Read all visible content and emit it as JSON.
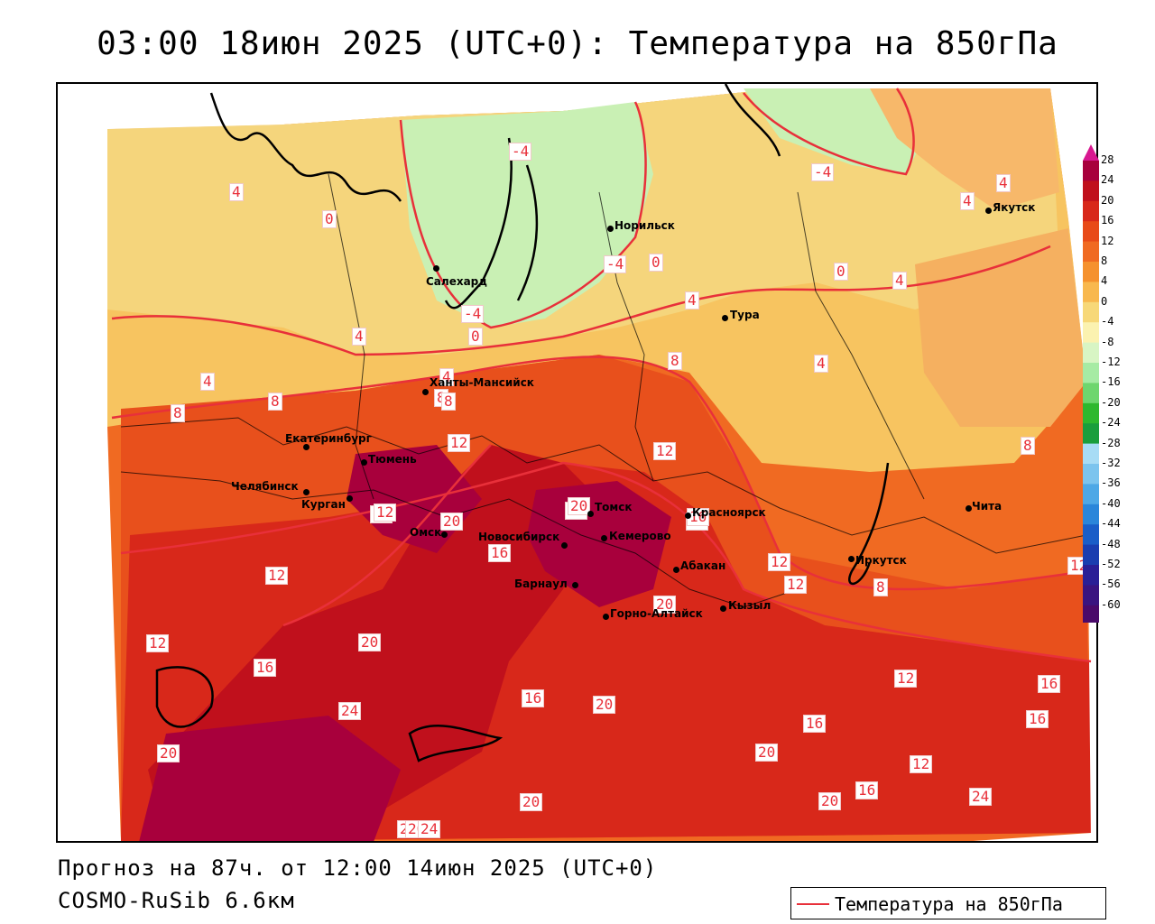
{
  "title": "03:00 18июн 2025 (UTC+0): Температура на 850гПа",
  "footer": {
    "forecast": "Прогноз на 87ч. от 12:00 14июн 2025 (UTC+0)",
    "model": "COSMO-RuSib 6.6км"
  },
  "legend": {
    "label": "Температура на 850гПа",
    "color": "#e8303a"
  },
  "colorbar": {
    "labels": [
      "28",
      "24",
      "20",
      "16",
      "12",
      "8",
      "4",
      "0",
      "-4",
      "-8",
      "-12",
      "-16",
      "-20",
      "-24",
      "-28",
      "-32",
      "-36",
      "-40",
      "-44",
      "-48",
      "-52",
      "-56",
      "-60"
    ],
    "colors": [
      "#a8003c",
      "#c0101c",
      "#d8281a",
      "#e84a18",
      "#f06a22",
      "#f5912e",
      "#f8b84e",
      "#f7d878",
      "#fbf2b0",
      "#d8f5c4",
      "#a6eba4",
      "#6ed66e",
      "#2eb82e",
      "#1a9e3c",
      "#a8dcf5",
      "#7cc4ee",
      "#4ea8e6",
      "#2a86da",
      "#1a5ec8",
      "#1a3eb0",
      "#2a1f96",
      "#3a1480",
      "#4a0a6a"
    ]
  },
  "cities": [
    {
      "name": "Норильск"
    },
    {
      "name": "Якутск"
    },
    {
      "name": "Салехард"
    },
    {
      "name": "Тура"
    },
    {
      "name": "Ханты-Мансийск"
    },
    {
      "name": "Екатеринбург"
    },
    {
      "name": "Тюмень"
    },
    {
      "name": "Челябинск"
    },
    {
      "name": "Курган"
    },
    {
      "name": "Омск"
    },
    {
      "name": "Томск"
    },
    {
      "name": "Новосибирск"
    },
    {
      "name": "Кемерово"
    },
    {
      "name": "Красноярск"
    },
    {
      "name": "Абакан"
    },
    {
      "name": "Барнаул"
    },
    {
      "name": "Горно-Алтайск"
    },
    {
      "name": "Кызыл"
    },
    {
      "name": "Иркутск"
    },
    {
      "name": "Чита"
    }
  ],
  "isolines": [
    "4",
    "0",
    "-4",
    "4",
    "0",
    "-4",
    "4",
    "0",
    "-4",
    "4",
    "0",
    "-4",
    "4",
    "4",
    "4",
    "8",
    "8",
    "8",
    "8",
    "4",
    "8",
    "12",
    "12",
    "12",
    "16",
    "20",
    "20",
    "16",
    "20",
    "16",
    "12",
    "12",
    "8",
    "12",
    "12",
    "20",
    "16",
    "12",
    "16",
    "24",
    "20",
    "16",
    "20",
    "16",
    "20",
    "16",
    "20",
    "16",
    "12",
    "20",
    "24",
    "20",
    "20",
    "24",
    "8",
    "4",
    "16",
    "20",
    "12"
  ]
}
